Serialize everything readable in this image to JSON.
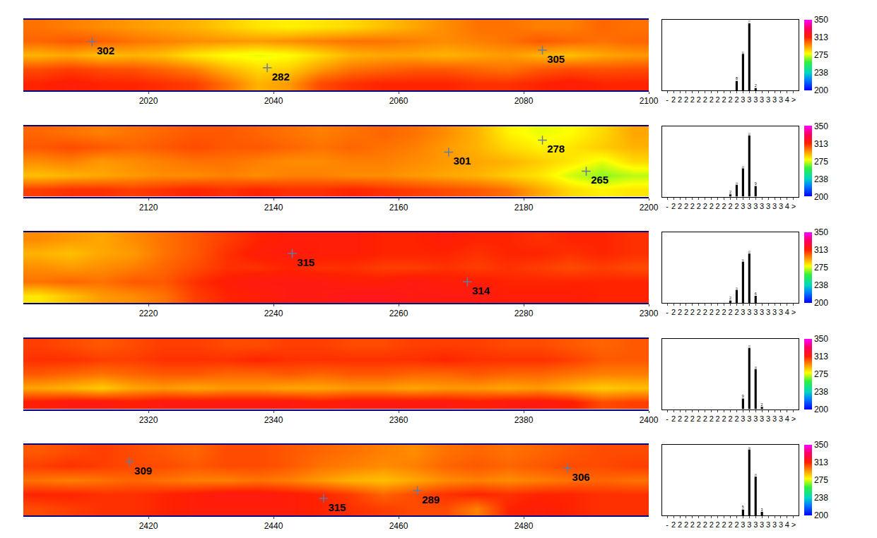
{
  "chart_data": [
    {
      "type": "heatmap",
      "x": [
        2002.5,
        2007.5,
        2012.5,
        2017.5,
        2022.5,
        2027.5,
        2032.5,
        2037.5,
        2042.5,
        2047.5,
        2052.5,
        2057.5,
        2062.5,
        2067.5,
        2072.5,
        2077.5,
        2082.5,
        2087.5,
        2092.5,
        2097.5
      ],
      "y": [
        0.5,
        1.5,
        2.5,
        3.5,
        4.5
      ],
      "xlim": [
        2000,
        2100
      ],
      "ylim": [
        0,
        5
      ],
      "xticks": [
        2020,
        2040,
        2060,
        2080,
        2100
      ],
      "tick_labels": "x",
      "z": [
        [
          312,
          314,
          312,
          312,
          310,
          308,
          300,
          290,
          294,
          306,
          310,
          312,
          312,
          312,
          310,
          310,
          312,
          314,
          312,
          312
        ],
        [
          306,
          308,
          306,
          305,
          302,
          298,
          290,
          284,
          286,
          294,
          300,
          302,
          304,
          304,
          302,
          300,
          304,
          306,
          305,
          306
        ],
        [
          290,
          292,
          288,
          290,
          288,
          282,
          278,
          276,
          278,
          284,
          290,
          292,
          292,
          290,
          292,
          294,
          290,
          288,
          292,
          294
        ],
        [
          302,
          304,
          303,
          300,
          298,
          296,
          295,
          294,
          296,
          298,
          300,
          300,
          298,
          296,
          298,
          300,
          304,
          302,
          300,
          302
        ],
        [
          300,
          298,
          296,
          294,
          292,
          290,
          286,
          282,
          280,
          282,
          284,
          288,
          292,
          296,
          300,
          300,
          298,
          298,
          302,
          300
        ]
      ],
      "zlim": [
        200,
        350
      ],
      "zticks": [
        200,
        {
          "value": 237.5,
          "label": "238"
        },
        275,
        {
          "value": 312.5,
          "label": "313"
        },
        350
      ],
      "points": {
        "x": [
          2011,
          2039,
          2083
        ],
        "y": [
          3.45,
          1.6,
          2.85
        ],
        "values": [
          302,
          282,
          305
        ],
        "marker": "cross"
      }
    },
    {
      "type": "bar",
      "categories": [
        "-",
        "2",
        "2",
        "2",
        "2",
        "2",
        "2",
        "2",
        "2",
        "2",
        "2",
        "2",
        "3",
        "3",
        "3",
        "3",
        "3",
        "3",
        "3",
        "4",
        ">"
      ],
      "values": [
        0,
        0,
        0,
        0,
        0,
        0,
        0,
        0,
        0,
        0,
        0,
        8,
        31,
        57,
        2,
        0,
        0,
        0,
        0,
        0,
        0
      ],
      "ylim": [
        0,
        60
      ],
      "data_labels": true,
      "tick_labels": "x",
      "color": "#000000"
    },
    {
      "type": "heatmap",
      "x": [
        2102.5,
        2107.5,
        2112.5,
        2117.5,
        2122.5,
        2127.5,
        2132.5,
        2137.5,
        2142.5,
        2147.5,
        2152.5,
        2157.5,
        2162.5,
        2167.5,
        2172.5,
        2177.5,
        2182.5,
        2187.5,
        2192.5,
        2197.5
      ],
      "y": [
        0.5,
        1.5,
        2.5,
        3.5,
        4.5
      ],
      "xlim": [
        2100,
        2200
      ],
      "ylim": [
        0,
        5
      ],
      "xticks": [
        2120,
        2140,
        2160,
        2180,
        2200
      ],
      "tick_labels": "x",
      "z": [
        [
          308,
          310,
          310,
          308,
          310,
          312,
          310,
          312,
          310,
          310,
          312,
          310,
          308,
          306,
          304,
          300,
          292,
          284,
          280,
          282
        ],
        [
          288,
          290,
          292,
          294,
          296,
          296,
          298,
          296,
          298,
          298,
          296,
          296,
          294,
          292,
          290,
          286,
          282,
          274,
          268,
          272
        ],
        [
          296,
          298,
          294,
          296,
          298,
          300,
          300,
          298,
          296,
          296,
          298,
          298,
          296,
          294,
          292,
          290,
          286,
          282,
          276,
          284
        ],
        [
          304,
          306,
          304,
          302,
          304,
          306,
          304,
          304,
          302,
          300,
          302,
          300,
          298,
          294,
          290,
          284,
          280,
          282,
          286,
          290
        ],
        [
          302,
          300,
          298,
          300,
          302,
          304,
          304,
          302,
          300,
          298,
          300,
          302,
          300,
          296,
          290,
          280,
          276,
          278,
          284,
          292
        ]
      ],
      "zlim": [
        200,
        350
      ],
      "zticks": [
        200,
        {
          "value": 237.5,
          "label": "238"
        },
        275,
        {
          "value": 312.5,
          "label": "313"
        },
        350
      ],
      "points": {
        "x": [
          2168,
          2183,
          2190
        ],
        "y": [
          3.15,
          4.0,
          1.8
        ],
        "values": [
          301,
          278,
          265
        ],
        "marker": "cross"
      }
    },
    {
      "type": "bar",
      "categories": [
        "-",
        "2",
        "2",
        "2",
        "2",
        "2",
        "2",
        "2",
        "2",
        "2",
        "2",
        "2",
        "3",
        "3",
        "3",
        "3",
        "3",
        "3",
        "3",
        "4",
        ">"
      ],
      "values": [
        0,
        0,
        0,
        0,
        0,
        0,
        0,
        0,
        0,
        0,
        2,
        10,
        24,
        52,
        9,
        0,
        0,
        0,
        0,
        0,
        0
      ],
      "ylim": [
        0,
        60
      ],
      "data_labels": true,
      "tick_labels": "x",
      "color": "#000000"
    },
    {
      "type": "heatmap",
      "x": [
        2202.5,
        2207.5,
        2212.5,
        2217.5,
        2222.5,
        2227.5,
        2232.5,
        2237.5,
        2242.5,
        2247.5,
        2252.5,
        2257.5,
        2262.5,
        2267.5,
        2272.5,
        2277.5,
        2282.5,
        2287.5,
        2292.5,
        2297.5
      ],
      "y": [
        0.5,
        1.5,
        2.5,
        3.5,
        4.5
      ],
      "xlim": [
        2200,
        2300
      ],
      "ylim": [
        0,
        5
      ],
      "xticks": [
        2220,
        2240,
        2260,
        2280,
        2300
      ],
      "tick_labels": "x",
      "z": [
        [
          282,
          288,
          294,
          296,
          300,
          308,
          312,
          314,
          316,
          316,
          318,
          318,
          316,
          316,
          316,
          314,
          314,
          314,
          312,
          312
        ],
        [
          300,
          302,
          300,
          304,
          304,
          310,
          314,
          316,
          316,
          316,
          314,
          314,
          316,
          314,
          314,
          312,
          312,
          312,
          312,
          312
        ],
        [
          296,
          294,
          296,
          298,
          302,
          306,
          310,
          310,
          312,
          310,
          310,
          308,
          308,
          310,
          308,
          310,
          308,
          306,
          308,
          306
        ],
        [
          290,
          288,
          292,
          294,
          300,
          304,
          310,
          314,
          315,
          314,
          314,
          312,
          312,
          312,
          310,
          312,
          312,
          310,
          312,
          310
        ],
        [
          296,
          294,
          292,
          296,
          300,
          304,
          308,
          312,
          314,
          314,
          314,
          312,
          312,
          314,
          312,
          312,
          310,
          312,
          312,
          310
        ]
      ],
      "zlim": [
        200,
        350
      ],
      "zticks": [
        200,
        {
          "value": 237.5,
          "label": "238"
        },
        275,
        {
          "value": 312.5,
          "label": "313"
        },
        350
      ],
      "points": {
        "x": [
          2243,
          2271
        ],
        "y": [
          3.5,
          1.5
        ],
        "values": [
          315,
          314
        ],
        "marker": "cross"
      }
    },
    {
      "type": "bar",
      "categories": [
        "-",
        "2",
        "2",
        "2",
        "2",
        "2",
        "2",
        "2",
        "2",
        "2",
        "2",
        "2",
        "3",
        "3",
        "3",
        "3",
        "3",
        "3",
        "3",
        "4",
        ">"
      ],
      "values": [
        0,
        0,
        0,
        0,
        0,
        0,
        0,
        0,
        0,
        0,
        2,
        11,
        35,
        42,
        6,
        0,
        0,
        0,
        0,
        0,
        0
      ],
      "ylim": [
        0,
        60
      ],
      "data_labels": true,
      "tick_labels": "x",
      "color": "#000000"
    },
    {
      "type": "heatmap",
      "x": [
        2302.5,
        2307.5,
        2312.5,
        2317.5,
        2322.5,
        2327.5,
        2332.5,
        2337.5,
        2342.5,
        2347.5,
        2352.5,
        2357.5,
        2362.5,
        2367.5,
        2372.5,
        2377.5,
        2382.5,
        2387.5,
        2392.5,
        2397.5
      ],
      "y": [
        0.5,
        1.5,
        2.5,
        3.5,
        4.5
      ],
      "xlim": [
        2300,
        2400
      ],
      "ylim": [
        0,
        5
      ],
      "xticks": [
        2320,
        2340,
        2360,
        2380,
        2400
      ],
      "tick_labels": "x",
      "z": [
        [
          314,
          316,
          316,
          314,
          316,
          316,
          316,
          316,
          316,
          314,
          316,
          316,
          316,
          316,
          314,
          316,
          316,
          314,
          306,
          308
        ],
        [
          292,
          290,
          286,
          292,
          294,
          292,
          294,
          294,
          292,
          292,
          294,
          294,
          292,
          294,
          294,
          292,
          294,
          290,
          286,
          288
        ],
        [
          304,
          302,
          300,
          302,
          304,
          304,
          302,
          302,
          304,
          302,
          304,
          304,
          302,
          302,
          304,
          302,
          302,
          300,
          298,
          298
        ],
        [
          310,
          310,
          308,
          308,
          310,
          310,
          310,
          312,
          310,
          310,
          310,
          310,
          310,
          312,
          310,
          310,
          310,
          308,
          304,
          304
        ],
        [
          308,
          306,
          304,
          306,
          308,
          308,
          306,
          306,
          308,
          308,
          306,
          306,
          308,
          308,
          308,
          306,
          306,
          304,
          302,
          304
        ]
      ],
      "zlim": [
        200,
        350
      ],
      "zticks": [
        200,
        {
          "value": 237.5,
          "label": "238"
        },
        275,
        {
          "value": 312.5,
          "label": "313"
        },
        350
      ]
    },
    {
      "type": "bar",
      "categories": [
        "-",
        "2",
        "2",
        "2",
        "2",
        "2",
        "2",
        "2",
        "2",
        "2",
        "2",
        "2",
        "3",
        "3",
        "3",
        "3",
        "3",
        "3",
        "3",
        "4",
        ">"
      ],
      "values": [
        0,
        0,
        0,
        0,
        0,
        0,
        0,
        0,
        0,
        0,
        0,
        0,
        9,
        52,
        34,
        2,
        0,
        0,
        0,
        0,
        0
      ],
      "ylim": [
        0,
        60
      ],
      "data_labels": true,
      "tick_labels": "x",
      "color": "#000000"
    },
    {
      "type": "heatmap",
      "x": [
        2402.5,
        2407.5,
        2412.5,
        2417.5,
        2422.5,
        2427.5,
        2432.5,
        2437.5,
        2442.5,
        2447.5,
        2452.5,
        2457.5,
        2462.5,
        2467.5,
        2472.5,
        2477.5,
        2482.5,
        2487.5,
        2492.5,
        2497.5
      ],
      "y": [
        0.5,
        1.5,
        2.5,
        3.5,
        4.5
      ],
      "xlim": [
        2400,
        2500
      ],
      "ylim": [
        0,
        5
      ],
      "xticks": [
        2420,
        2440,
        2460,
        2480
      ],
      "tick_labels": "x",
      "z": [
        [
          306,
          308,
          310,
          310,
          312,
          314,
          314,
          314,
          314,
          312,
          310,
          308,
          306,
          306,
          298,
          312,
          314,
          312,
          310,
          310
        ],
        [
          312,
          312,
          310,
          310,
          312,
          314,
          316,
          316,
          314,
          312,
          308,
          302,
          306,
          310,
          312,
          310,
          312,
          312,
          310,
          310
        ],
        [
          300,
          298,
          300,
          302,
          300,
          298,
          298,
          300,
          298,
          294,
          290,
          288,
          292,
          296,
          298,
          296,
          298,
          300,
          302,
          300
        ],
        [
          308,
          310,
          308,
          306,
          306,
          304,
          306,
          306,
          304,
          300,
          298,
          296,
          298,
          302,
          304,
          302,
          304,
          306,
          306,
          308
        ],
        [
          304,
          306,
          308,
          306,
          304,
          302,
          306,
          306,
          304,
          302,
          300,
          298,
          296,
          300,
          302,
          300,
          302,
          304,
          306,
          306
        ]
      ],
      "zlim": [
        200,
        350
      ],
      "zticks": [
        200,
        {
          "value": 237.5,
          "label": "238"
        },
        275,
        {
          "value": 312.5,
          "label": "313"
        },
        350
      ],
      "points": {
        "x": [
          2417,
          2448,
          2463,
          2487
        ],
        "y": [
          3.8,
          1.2,
          1.75,
          3.35
        ],
        "values": [
          309,
          315,
          289,
          306
        ],
        "marker": "cross"
      }
    },
    {
      "type": "bar",
      "categories": [
        "-",
        "2",
        "2",
        "2",
        "2",
        "2",
        "2",
        "2",
        "2",
        "2",
        "2",
        "2",
        "3",
        "3",
        "3",
        "3",
        "3",
        "3",
        "3",
        "4",
        ">"
      ],
      "values": [
        0,
        0,
        0,
        0,
        0,
        0,
        0,
        0,
        0,
        0,
        0,
        0,
        5,
        56,
        33,
        3,
        0,
        0,
        0,
        0,
        0
      ],
      "ylim": [
        0,
        60
      ],
      "data_labels": true,
      "tick_labels": "x",
      "color": "#000000"
    }
  ]
}
